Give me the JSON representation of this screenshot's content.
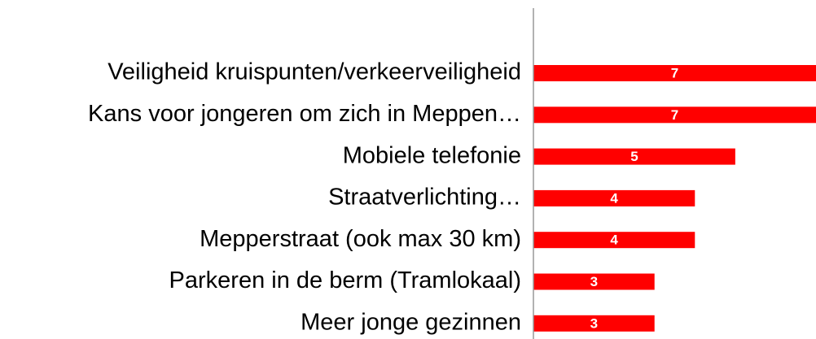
{
  "chart_data": {
    "type": "bar",
    "orientation": "horizontal",
    "categories": [
      "Veiligheid kruispunten/verkeerveiligheid",
      "Kans voor jongeren om zich in Meppen…",
      "Mobiele telefonie",
      "Straatverlichting…",
      "Mepperstraat (ook max 30 km)",
      "Parkeren in de berm (Tramlokaal)",
      "Meer jonge gezinnen"
    ],
    "values": [
      7,
      7,
      5,
      4,
      4,
      3,
      3
    ],
    "color": "#ff0000",
    "xlim": [
      0,
      7
    ]
  }
}
